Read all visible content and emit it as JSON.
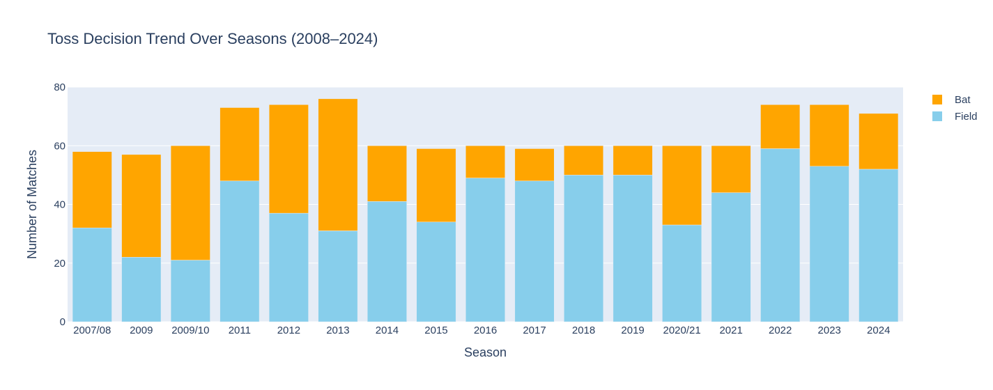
{
  "chart_data": {
    "type": "bar",
    "stacked": true,
    "title": "Toss Decision Trend Over Seasons (2008–2024)",
    "xlabel": "Season",
    "ylabel": "Number of Matches",
    "ylim": [
      0,
      80
    ],
    "yticks": [
      0,
      20,
      40,
      60,
      80
    ],
    "grid": true,
    "legend_position": "top-right",
    "categories": [
      "2007/08",
      "2009",
      "2009/10",
      "2011",
      "2012",
      "2013",
      "2014",
      "2015",
      "2016",
      "2017",
      "2018",
      "2019",
      "2020/21",
      "2021",
      "2022",
      "2023",
      "2024"
    ],
    "series": [
      {
        "name": "Field",
        "color": "#87ceeb",
        "values": [
          32,
          22,
          21,
          48,
          37,
          31,
          41,
          34,
          49,
          48,
          50,
          50,
          33,
          44,
          59,
          53,
          52
        ]
      },
      {
        "name": "Bat",
        "color": "#ffa500",
        "values": [
          26,
          35,
          39,
          25,
          37,
          45,
          19,
          25,
          11,
          11,
          10,
          10,
          27,
          16,
          15,
          21,
          19
        ]
      }
    ],
    "legend_order": [
      "Bat",
      "Field"
    ]
  }
}
